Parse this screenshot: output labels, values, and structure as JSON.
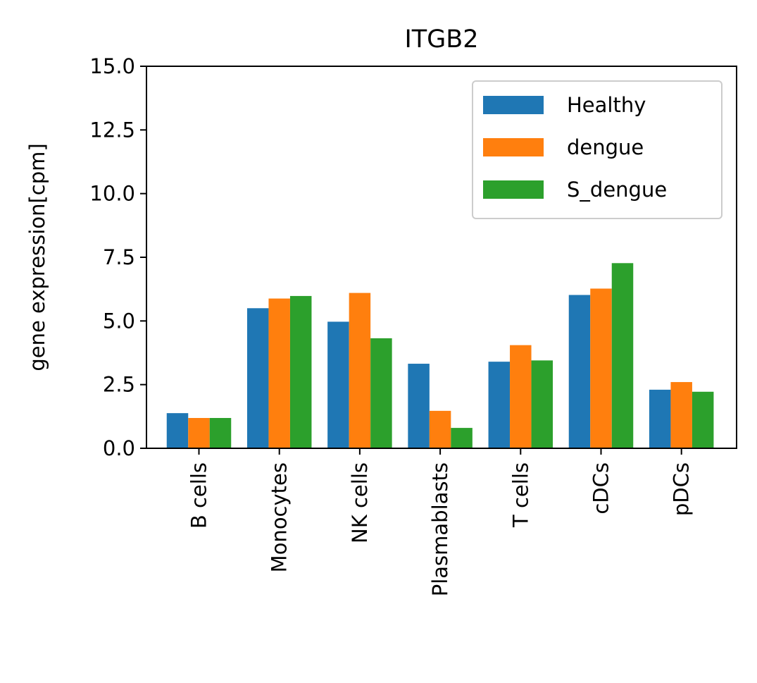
{
  "chart_data": {
    "type": "bar",
    "title": "ITGB2",
    "xlabel": "",
    "ylabel": "gene expression[cpm]",
    "ylim": [
      0,
      15
    ],
    "yticks": [
      "0.0",
      "2.5",
      "5.0",
      "7.5",
      "10.0",
      "12.5",
      "15.0"
    ],
    "categories": [
      "B cells",
      "Monocytes",
      "NK cells",
      "Plasmablasts",
      "T cells",
      "cDCs",
      "pDCs"
    ],
    "series": [
      {
        "name": "Healthy",
        "color": "#1f77b4",
        "values": [
          1.38,
          5.5,
          4.97,
          3.32,
          3.4,
          6.02,
          2.3
        ]
      },
      {
        "name": "dengue",
        "color": "#ff7f0e",
        "values": [
          1.19,
          5.88,
          6.1,
          1.47,
          4.05,
          6.27,
          2.6
        ]
      },
      {
        "name": "S_dengue",
        "color": "#2ca02c",
        "values": [
          1.19,
          5.98,
          4.32,
          0.8,
          3.45,
          7.27,
          2.22
        ]
      }
    ],
    "legend_position": "top-right",
    "grid": false
  }
}
